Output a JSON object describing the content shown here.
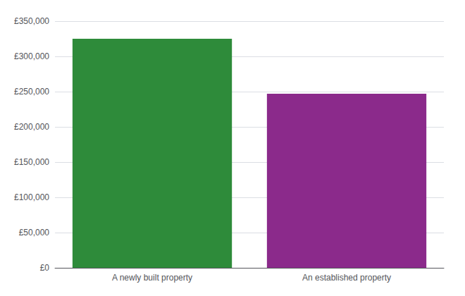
{
  "chart_data": {
    "type": "bar",
    "categories": [
      "A newly built property",
      "An established property"
    ],
    "values": [
      325000,
      247000
    ],
    "colors": [
      "#2e8b3a",
      "#8b2a8b"
    ],
    "ylim": [
      0,
      350000
    ],
    "yticks": [
      {
        "value": 0,
        "label": "£0"
      },
      {
        "value": 50000,
        "label": "£50,000"
      },
      {
        "value": 100000,
        "label": "£100,000"
      },
      {
        "value": 150000,
        "label": "£150,000"
      },
      {
        "value": 200000,
        "label": "£200,000"
      },
      {
        "value": 250000,
        "label": "£250,000"
      },
      {
        "value": 300000,
        "label": "£300,000"
      },
      {
        "value": 350000,
        "label": "£350,000"
      }
    ],
    "grid": true
  }
}
